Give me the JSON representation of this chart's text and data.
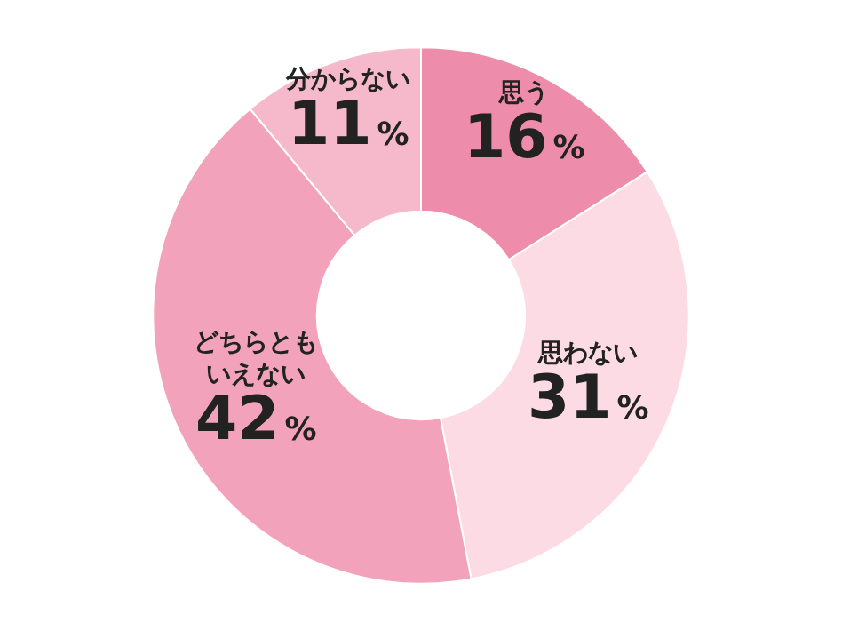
{
  "chart_data": {
    "type": "donut",
    "categories": [
      "思う",
      "思わない",
      "どちらともいえない",
      "分からない"
    ],
    "values": [
      16,
      31,
      42,
      11
    ],
    "value_labels": [
      "16%",
      "31%",
      "42%",
      "11%"
    ],
    "colors": [
      "#ee8dab",
      "#fcdbe4",
      "#f2a3bb",
      "#f6b8cb"
    ],
    "legend": false
  }
}
